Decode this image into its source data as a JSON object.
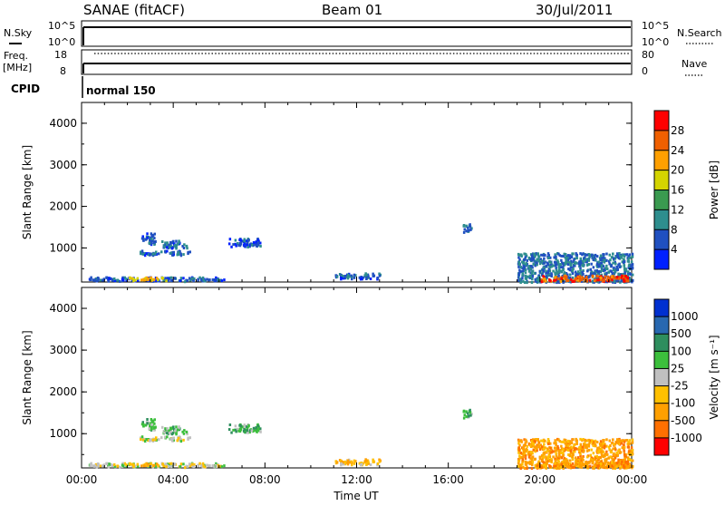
{
  "header": {
    "station": "SANAE (fitACF)",
    "beam": "Beam 01",
    "date": "30/Jul/2011"
  },
  "top_panels": {
    "nsky_label": "N.Sky",
    "nsearch_label": "N.Search",
    "nsky_top_tick": "10^5",
    "nsky_bottom_tick": "10^0",
    "nsearch_top_tick": "10^5",
    "nsearch_bottom_tick": "10^0",
    "freq_label": "Freq.",
    "freq_unit": "[MHz]",
    "freq_top_tick": "18",
    "freq_bottom_tick": "8",
    "nave_label": "Nave",
    "nave_top_tick": "80",
    "nave_bottom_tick": "0",
    "cpid_label": "CPID",
    "cpid_value": "normal 150"
  },
  "chart_data": [
    {
      "type": "heatmap",
      "name": "power",
      "ylabel": "Slant Range [km]",
      "yticks": [
        "1000",
        "2000",
        "3000",
        "4000"
      ],
      "ylim": [
        180,
        4500
      ],
      "xlim": [
        0,
        24
      ],
      "colorbar_label": "Power [dB]",
      "colorbar_ticks": [
        "4",
        "8",
        "12",
        "16",
        "20",
        "24",
        "28"
      ],
      "colorbar_range": [
        0,
        32
      ],
      "colorbar_colors": [
        "#0020ff",
        "#2050c0",
        "#2e8e8e",
        "#3a9a50",
        "#d4d400",
        "#ffa000",
        "#f06000",
        "#ff0000"
      ],
      "clusters": [
        {
          "x": [
            2.5,
            4.7
          ],
          "y": [
            850,
            960
          ],
          "level": 7
        },
        {
          "x": [
            2.6,
            3.2
          ],
          "y": [
            1100,
            1400
          ],
          "level": 6
        },
        {
          "x": [
            3.4,
            4.6
          ],
          "y": [
            1020,
            1200
          ],
          "level": 7
        },
        {
          "x": [
            6.4,
            7.8
          ],
          "y": [
            1050,
            1250
          ],
          "level": 6
        },
        {
          "x": [
            0.3,
            6.2
          ],
          "y": [
            220,
            320
          ],
          "level": 6
        },
        {
          "x": [
            2.0,
            3.7
          ],
          "y": [
            240,
            320
          ],
          "level": 20
        },
        {
          "x": [
            11.0,
            13.0
          ],
          "y": [
            280,
            420
          ],
          "level": 6
        },
        {
          "x": [
            16.6,
            17.0
          ],
          "y": [
            1400,
            1600
          ],
          "level": 8
        },
        {
          "x": [
            19.0,
            24.0
          ],
          "y": [
            200,
            900
          ],
          "level": 8
        },
        {
          "x": [
            20.0,
            23.8
          ],
          "y": [
            220,
            360
          ],
          "level": 26
        }
      ]
    },
    {
      "type": "heatmap",
      "name": "velocity",
      "xlabel": "Time UT",
      "xticks": [
        "00:00",
        "04:00",
        "08:00",
        "12:00",
        "16:00",
        "20:00",
        "00:00"
      ],
      "ylabel": "Slant Range [km]",
      "yticks": [
        "1000",
        "2000",
        "3000",
        "4000"
      ],
      "ylim": [
        180,
        4500
      ],
      "xlim": [
        0,
        24
      ],
      "colorbar_label": "Velocity [m s⁻¹]",
      "colorbar_ticks": [
        "1000",
        "500",
        "100",
        "25",
        "-25",
        "-100",
        "-500",
        "-1000"
      ],
      "colorbar_colors": [
        "#0030d0",
        "#2868b0",
        "#2e8e5e",
        "#3cbf3c",
        "#c0c0c0",
        "#ffc000",
        "#ffa000",
        "#ff7000",
        "#ff0000"
      ],
      "clusters": [
        {
          "x": [
            2.5,
            4.7
          ],
          "y": [
            850,
            960
          ],
          "level": 4
        },
        {
          "x": [
            2.6,
            3.2
          ],
          "y": [
            1100,
            1400
          ],
          "level": 3
        },
        {
          "x": [
            3.4,
            4.6
          ],
          "y": [
            1020,
            1200
          ],
          "level": 3
        },
        {
          "x": [
            6.4,
            7.8
          ],
          "y": [
            1050,
            1250
          ],
          "level": 3
        },
        {
          "x": [
            0.3,
            6.2
          ],
          "y": [
            220,
            320
          ],
          "level": 4
        },
        {
          "x": [
            2.0,
            3.7
          ],
          "y": [
            240,
            320
          ],
          "level": 5
        },
        {
          "x": [
            11.0,
            13.0
          ],
          "y": [
            280,
            420
          ],
          "level": 5
        },
        {
          "x": [
            16.6,
            17.0
          ],
          "y": [
            1400,
            1600
          ],
          "level": 3
        },
        {
          "x": [
            19.0,
            24.0
          ],
          "y": [
            200,
            900
          ],
          "level": 6
        },
        {
          "x": [
            20.0,
            23.8
          ],
          "y": [
            220,
            360
          ],
          "level": 6
        }
      ]
    }
  ]
}
